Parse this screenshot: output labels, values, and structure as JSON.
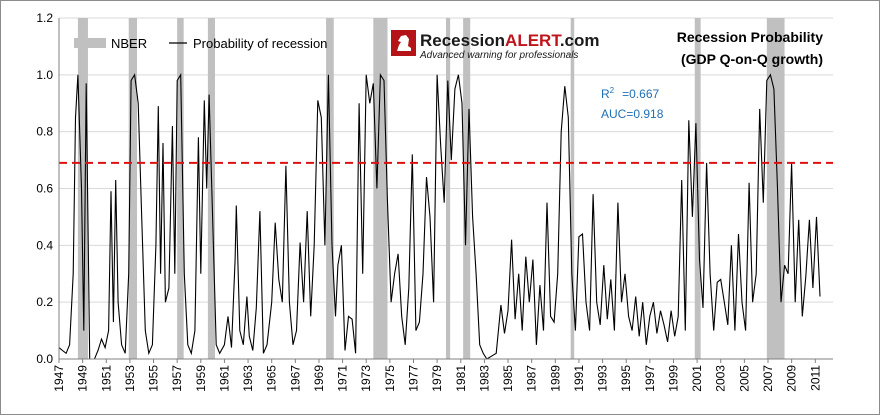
{
  "logo": {
    "name_part1": "Recession",
    "name_part2": "ALERT",
    "name_part3": ".com",
    "tagline": "Advanced warning for professionals"
  },
  "stats": {
    "r2_label": "R",
    "r2_sup": "2",
    "r2_value": "=0.667",
    "auc": "AUC=0.918"
  },
  "chart_data": {
    "type": "line",
    "title_line1": "Recession Probability",
    "title_line2": "(GDP Q-on-Q growth)",
    "xlabel": "",
    "ylabel": "",
    "xlim": [
      1947,
      2012.5
    ],
    "ylim": [
      0,
      1.2
    ],
    "grid": true,
    "legend_placement": "top-left",
    "x_tick_labels": [
      "1947",
      "1949",
      "1951",
      "1953",
      "1955",
      "1957",
      "1959",
      "1961",
      "1963",
      "1965",
      "1967",
      "1969",
      "1971",
      "1973",
      "1975",
      "1977",
      "1979",
      "1981",
      "1983",
      "1985",
      "1987",
      "1989",
      "1991",
      "1993",
      "1995",
      "1997",
      "1999",
      "2001",
      "2003",
      "2005",
      "2007",
      "2009",
      "2011"
    ],
    "y_tick_labels": [
      "0.0",
      "0.2",
      "0.4",
      "0.6",
      "0.8",
      "1.0",
      "1.2"
    ],
    "y_ticks": [
      0,
      0.2,
      0.4,
      0.6,
      0.8,
      1.0,
      1.2
    ],
    "threshold": 0.69,
    "colors": {
      "nber": "#c0c0c0",
      "line": "#000000",
      "threshold": "#dd1111",
      "grid": "#d9d9d9"
    },
    "series": [
      {
        "name": "Probability of recession",
        "kind": "line",
        "points": [
          [
            1947.0,
            0.04
          ],
          [
            1947.3,
            0.03
          ],
          [
            1947.6,
            0.02
          ],
          [
            1947.9,
            0.05
          ],
          [
            1948.2,
            0.3
          ],
          [
            1948.4,
            0.85
          ],
          [
            1948.6,
            1.0
          ],
          [
            1948.9,
            0.6
          ],
          [
            1949.1,
            0.1
          ],
          [
            1949.3,
            0.97
          ],
          [
            1949.6,
            0.0
          ],
          [
            1950.0,
            0.0
          ],
          [
            1950.3,
            0.03
          ],
          [
            1950.6,
            0.07
          ],
          [
            1950.9,
            0.04
          ],
          [
            1951.2,
            0.1
          ],
          [
            1951.4,
            0.59
          ],
          [
            1951.6,
            0.13
          ],
          [
            1951.8,
            0.63
          ],
          [
            1952.0,
            0.2
          ],
          [
            1952.3,
            0.05
          ],
          [
            1952.6,
            0.02
          ],
          [
            1952.9,
            0.3
          ],
          [
            1953.1,
            0.98
          ],
          [
            1953.4,
            1.0
          ],
          [
            1953.7,
            0.9
          ],
          [
            1954.0,
            0.5
          ],
          [
            1954.3,
            0.1
          ],
          [
            1954.6,
            0.02
          ],
          [
            1954.9,
            0.05
          ],
          [
            1955.2,
            0.4
          ],
          [
            1955.4,
            0.89
          ],
          [
            1955.6,
            0.3
          ],
          [
            1955.8,
            0.76
          ],
          [
            1956.0,
            0.2
          ],
          [
            1956.3,
            0.25
          ],
          [
            1956.6,
            0.82
          ],
          [
            1956.8,
            0.3
          ],
          [
            1957.0,
            0.98
          ],
          [
            1957.3,
            1.0
          ],
          [
            1957.6,
            0.3
          ],
          [
            1957.9,
            0.05
          ],
          [
            1958.2,
            0.02
          ],
          [
            1958.5,
            0.1
          ],
          [
            1958.8,
            0.78
          ],
          [
            1959.0,
            0.3
          ],
          [
            1959.3,
            0.91
          ],
          [
            1959.5,
            0.6
          ],
          [
            1959.7,
            0.93
          ],
          [
            1960.0,
            0.5
          ],
          [
            1960.3,
            0.05
          ],
          [
            1960.6,
            0.02
          ],
          [
            1961.0,
            0.05
          ],
          [
            1961.3,
            0.15
          ],
          [
            1961.6,
            0.04
          ],
          [
            1961.9,
            0.35
          ],
          [
            1962.0,
            0.54
          ],
          [
            1962.3,
            0.1
          ],
          [
            1962.6,
            0.05
          ],
          [
            1962.9,
            0.22
          ],
          [
            1963.1,
            0.08
          ],
          [
            1963.4,
            0.03
          ],
          [
            1963.7,
            0.18
          ],
          [
            1964.0,
            0.52
          ],
          [
            1964.3,
            0.02
          ],
          [
            1964.6,
            0.05
          ],
          [
            1965.0,
            0.2
          ],
          [
            1965.3,
            0.48
          ],
          [
            1965.6,
            0.28
          ],
          [
            1965.9,
            0.2
          ],
          [
            1966.2,
            0.68
          ],
          [
            1966.5,
            0.2
          ],
          [
            1966.8,
            0.05
          ],
          [
            1967.1,
            0.1
          ],
          [
            1967.4,
            0.41
          ],
          [
            1967.7,
            0.2
          ],
          [
            1968.0,
            0.52
          ],
          [
            1968.3,
            0.15
          ],
          [
            1968.6,
            0.4
          ],
          [
            1968.9,
            0.91
          ],
          [
            1969.2,
            0.85
          ],
          [
            1969.5,
            0.4
          ],
          [
            1969.8,
            1.0
          ],
          [
            1970.1,
            0.4
          ],
          [
            1970.4,
            0.15
          ],
          [
            1970.6,
            0.33
          ],
          [
            1970.9,
            0.4
          ],
          [
            1971.2,
            0.03
          ],
          [
            1971.5,
            0.15
          ],
          [
            1971.8,
            0.14
          ],
          [
            1972.1,
            0.02
          ],
          [
            1972.4,
            0.9
          ],
          [
            1972.7,
            0.3
          ],
          [
            1973.0,
            1.0
          ],
          [
            1973.3,
            0.9
          ],
          [
            1973.6,
            0.97
          ],
          [
            1973.9,
            0.6
          ],
          [
            1974.2,
            1.0
          ],
          [
            1974.5,
            0.98
          ],
          [
            1974.8,
            0.55
          ],
          [
            1975.1,
            0.2
          ],
          [
            1975.4,
            0.3
          ],
          [
            1975.7,
            0.37
          ],
          [
            1976.0,
            0.15
          ],
          [
            1976.3,
            0.05
          ],
          [
            1976.6,
            0.25
          ],
          [
            1976.9,
            0.72
          ],
          [
            1977.2,
            0.1
          ],
          [
            1977.5,
            0.13
          ],
          [
            1977.8,
            0.3
          ],
          [
            1978.1,
            0.64
          ],
          [
            1978.4,
            0.5
          ],
          [
            1978.7,
            0.2
          ],
          [
            1979.0,
            1.0
          ],
          [
            1979.3,
            0.75
          ],
          [
            1979.6,
            0.55
          ],
          [
            1979.9,
            0.98
          ],
          [
            1980.2,
            0.7
          ],
          [
            1980.5,
            0.95
          ],
          [
            1980.8,
            1.0
          ],
          [
            1981.1,
            0.9
          ],
          [
            1981.4,
            0.4
          ],
          [
            1981.7,
            0.88
          ],
          [
            1982.0,
            0.5
          ],
          [
            1982.3,
            0.3
          ],
          [
            1982.6,
            0.05
          ],
          [
            1982.9,
            0.02
          ],
          [
            1983.2,
            0.0
          ],
          [
            1983.6,
            0.01
          ],
          [
            1984.0,
            0.02
          ],
          [
            1984.4,
            0.19
          ],
          [
            1984.7,
            0.09
          ],
          [
            1985.0,
            0.17
          ],
          [
            1985.3,
            0.42
          ],
          [
            1985.6,
            0.14
          ],
          [
            1985.9,
            0.3
          ],
          [
            1986.2,
            0.1
          ],
          [
            1986.5,
            0.36
          ],
          [
            1986.8,
            0.2
          ],
          [
            1987.1,
            0.35
          ],
          [
            1987.4,
            0.05
          ],
          [
            1987.7,
            0.26
          ],
          [
            1988.0,
            0.1
          ],
          [
            1988.3,
            0.55
          ],
          [
            1988.6,
            0.15
          ],
          [
            1988.9,
            0.13
          ],
          [
            1989.2,
            0.3
          ],
          [
            1989.5,
            0.8
          ],
          [
            1989.8,
            0.96
          ],
          [
            1990.1,
            0.85
          ],
          [
            1990.4,
            0.3
          ],
          [
            1990.7,
            0.1
          ],
          [
            1991.0,
            0.43
          ],
          [
            1991.3,
            0.44
          ],
          [
            1991.6,
            0.2
          ],
          [
            1991.9,
            0.1
          ],
          [
            1992.2,
            0.58
          ],
          [
            1992.5,
            0.2
          ],
          [
            1992.8,
            0.12
          ],
          [
            1993.1,
            0.33
          ],
          [
            1993.4,
            0.14
          ],
          [
            1993.7,
            0.28
          ],
          [
            1994.0,
            0.1
          ],
          [
            1994.3,
            0.55
          ],
          [
            1994.6,
            0.2
          ],
          [
            1994.9,
            0.3
          ],
          [
            1995.2,
            0.15
          ],
          [
            1995.5,
            0.1
          ],
          [
            1995.8,
            0.22
          ],
          [
            1996.1,
            0.08
          ],
          [
            1996.4,
            0.2
          ],
          [
            1996.7,
            0.05
          ],
          [
            1997.0,
            0.15
          ],
          [
            1997.3,
            0.2
          ],
          [
            1997.6,
            0.09
          ],
          [
            1997.9,
            0.17
          ],
          [
            1998.2,
            0.12
          ],
          [
            1998.5,
            0.06
          ],
          [
            1998.8,
            0.17
          ],
          [
            1999.1,
            0.08
          ],
          [
            1999.4,
            0.15
          ],
          [
            1999.7,
            0.63
          ],
          [
            2000.0,
            0.1
          ],
          [
            2000.3,
            0.84
          ],
          [
            2000.6,
            0.5
          ],
          [
            2000.9,
            0.83
          ],
          [
            2001.2,
            0.35
          ],
          [
            2001.5,
            0.18
          ],
          [
            2001.8,
            0.69
          ],
          [
            2002.1,
            0.3
          ],
          [
            2002.4,
            0.1
          ],
          [
            2002.7,
            0.27
          ],
          [
            2003.0,
            0.28
          ],
          [
            2003.3,
            0.2
          ],
          [
            2003.6,
            0.12
          ],
          [
            2003.9,
            0.4
          ],
          [
            2004.2,
            0.1
          ],
          [
            2004.5,
            0.44
          ],
          [
            2004.8,
            0.2
          ],
          [
            2005.1,
            0.1
          ],
          [
            2005.4,
            0.62
          ],
          [
            2005.7,
            0.2
          ],
          [
            2006.0,
            0.3
          ],
          [
            2006.3,
            0.88
          ],
          [
            2006.6,
            0.55
          ],
          [
            2006.9,
            0.98
          ],
          [
            2007.2,
            1.0
          ],
          [
            2007.5,
            0.95
          ],
          [
            2007.8,
            0.6
          ],
          [
            2008.1,
            0.2
          ],
          [
            2008.4,
            0.33
          ],
          [
            2008.7,
            0.3
          ],
          [
            2009.0,
            0.69
          ],
          [
            2009.3,
            0.2
          ],
          [
            2009.6,
            0.49
          ],
          [
            2009.9,
            0.15
          ],
          [
            2010.2,
            0.29
          ],
          [
            2010.5,
            0.49
          ],
          [
            2010.8,
            0.25
          ],
          [
            2011.1,
            0.5
          ],
          [
            2011.4,
            0.22
          ]
        ]
      },
      {
        "name": "NBER",
        "kind": "recession-bands",
        "periods": [
          [
            1948.6,
            1949.45
          ],
          [
            1952.9,
            1953.6
          ],
          [
            1957.0,
            1957.55
          ],
          [
            1959.6,
            1960.2
          ],
          [
            1969.6,
            1970.25
          ],
          [
            1973.6,
            1974.8
          ],
          [
            1979.75,
            1980.1
          ],
          [
            1981.2,
            1981.8
          ],
          [
            1990.3,
            1990.6
          ],
          [
            2000.8,
            2001.3
          ],
          [
            2006.9,
            2008.4
          ]
        ]
      }
    ]
  }
}
